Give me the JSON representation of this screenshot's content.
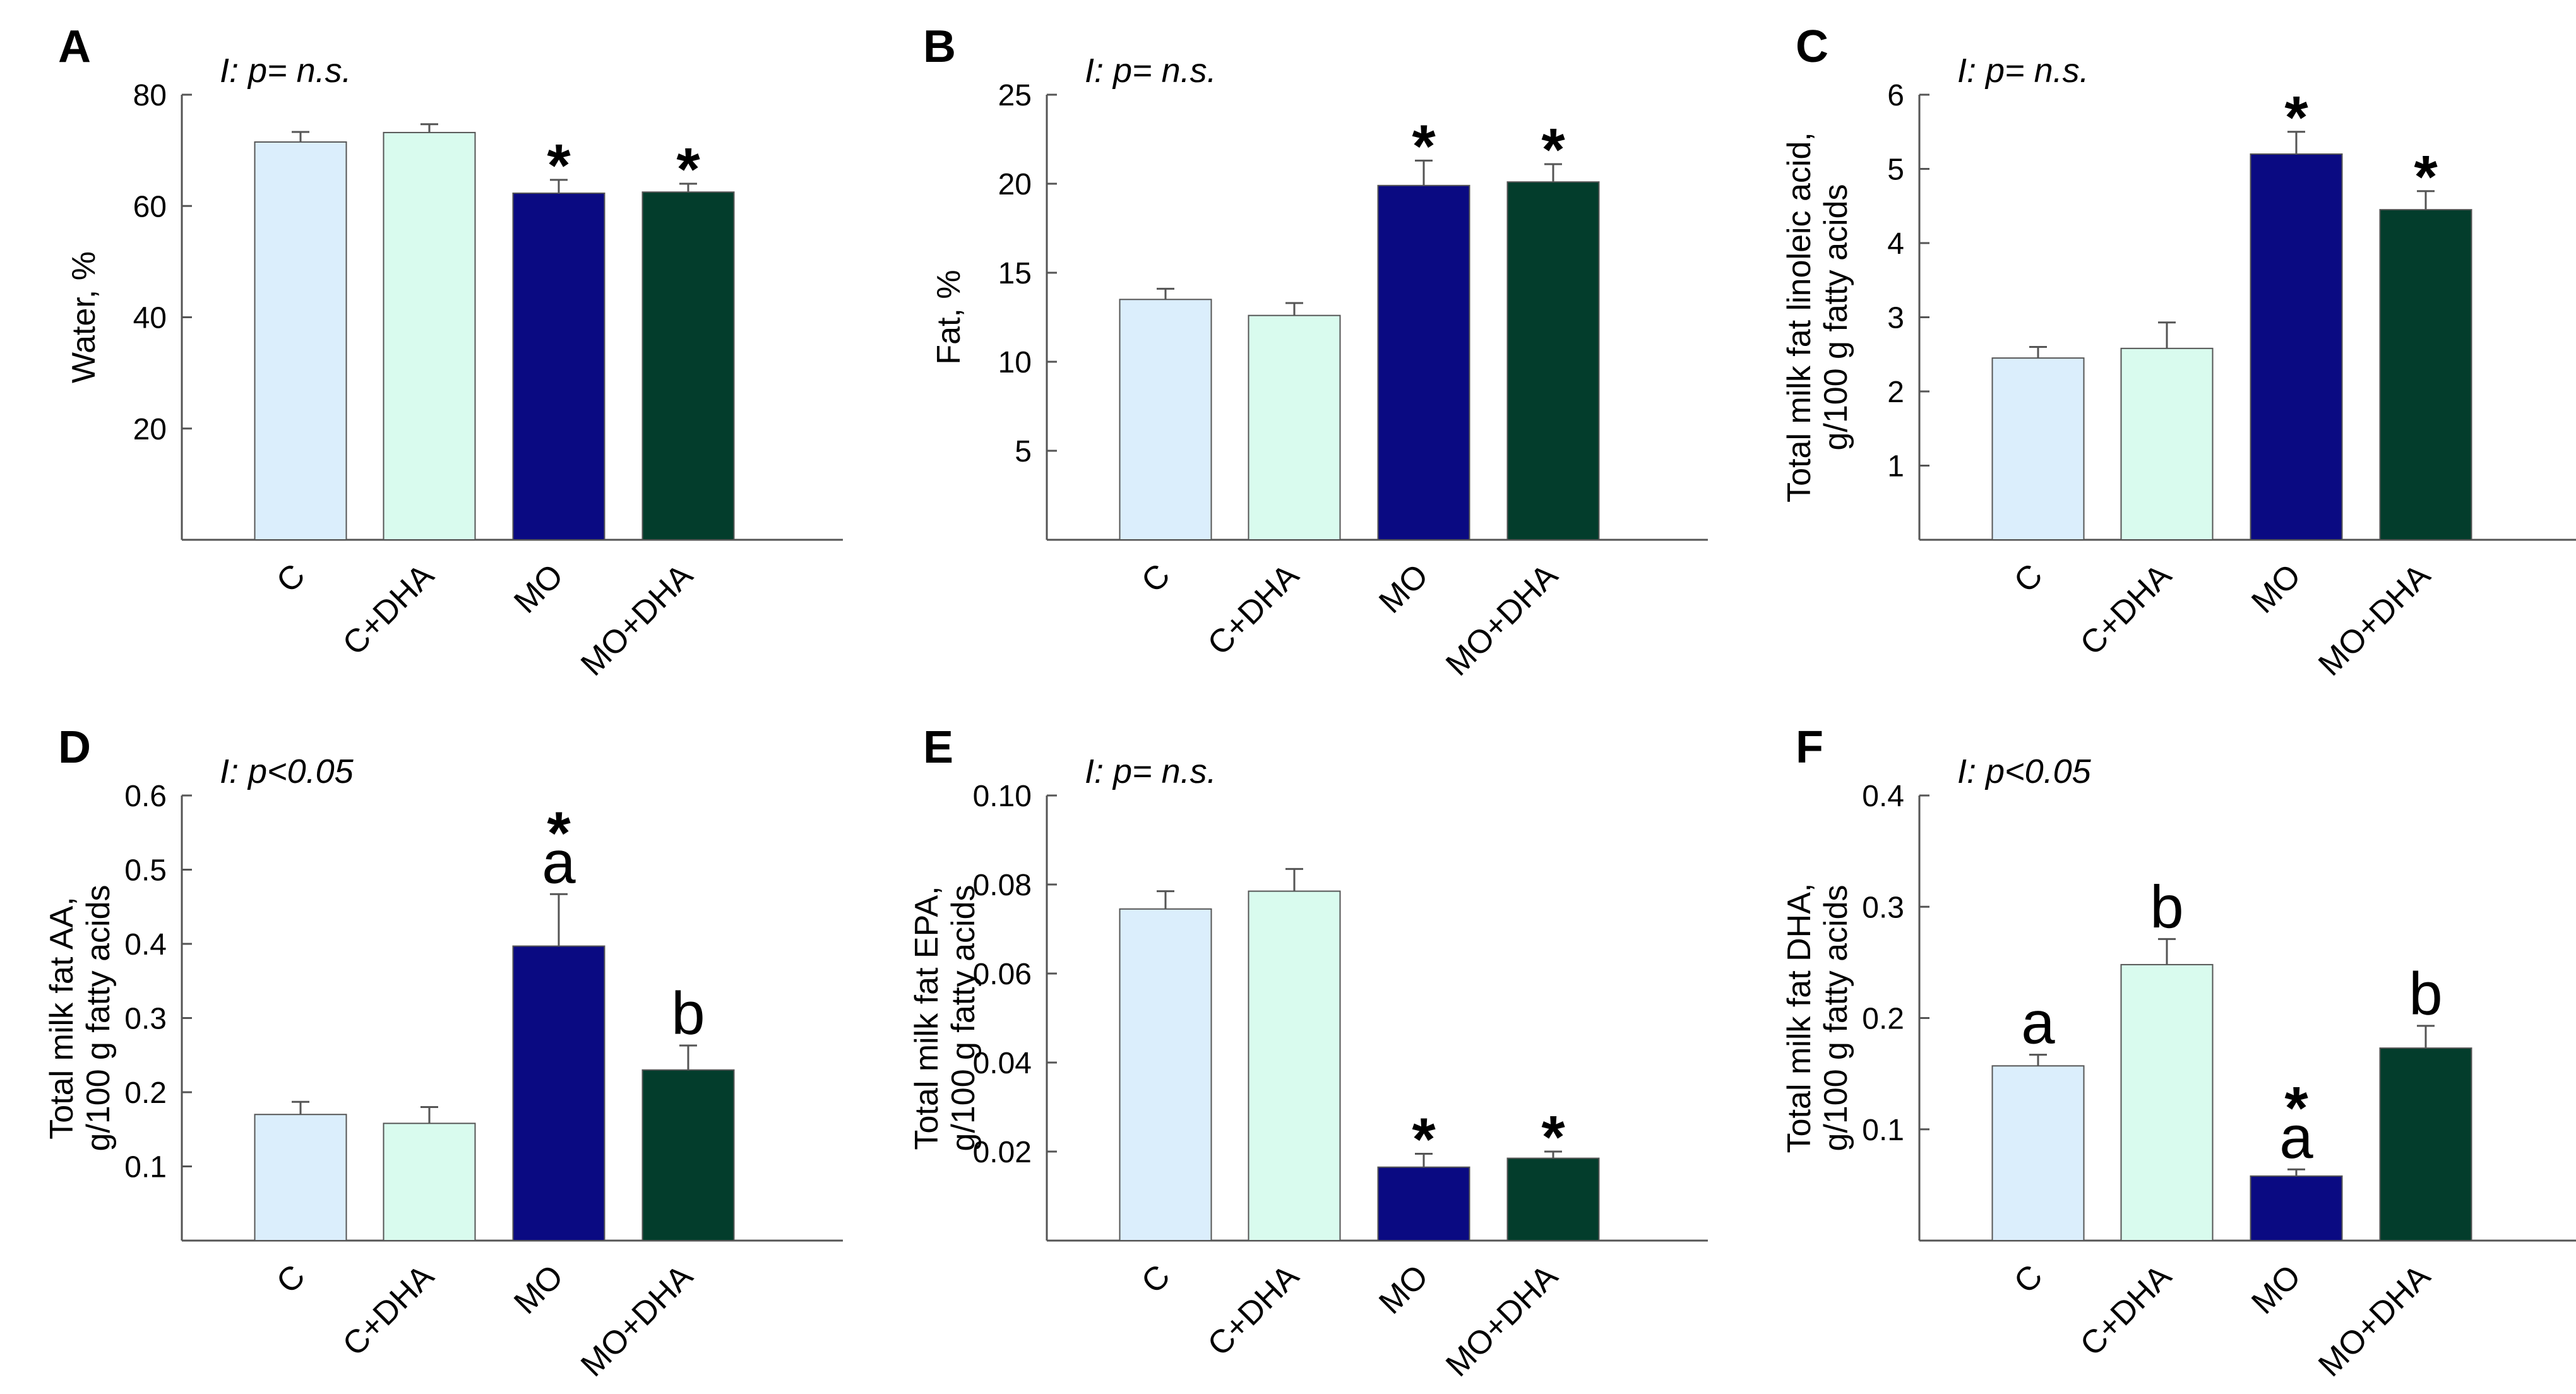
{
  "figure": {
    "colors": {
      "C": "#dbeefc",
      "C+DHA": "#d9fbee",
      "MO": "#0a0a82",
      "MO+DHA": "#033d2c",
      "axis": "#555555",
      "bar_edge": "#555555"
    }
  },
  "chart_data": [
    {
      "panel": "A",
      "type": "bar",
      "interaction_note": "I: p= n.s.",
      "categories": [
        "C",
        "C+DHA",
        "MO",
        "MO+DHA"
      ],
      "values": [
        71.5,
        73.2,
        62.3,
        62.5
      ],
      "errors": [
        1.8,
        1.5,
        2.4,
        1.5
      ],
      "annotations": [
        "",
        "",
        "*",
        "*"
      ],
      "ylabel": [
        "Water, %"
      ],
      "ylim": [
        0,
        80
      ],
      "yticks": [
        20,
        40,
        60,
        80
      ],
      "yticklabels": [
        "20",
        "40",
        "60",
        "80"
      ]
    },
    {
      "panel": "B",
      "type": "bar",
      "interaction_note": "I: p= n.s.",
      "categories": [
        "C",
        "C+DHA",
        "MO",
        "MO+DHA"
      ],
      "values": [
        13.5,
        12.6,
        19.9,
        20.1
      ],
      "errors": [
        0.6,
        0.7,
        1.4,
        1.0
      ],
      "annotations": [
        "",
        "",
        "*",
        "*"
      ],
      "ylabel": [
        "Fat, %"
      ],
      "ylim": [
        0,
        25
      ],
      "yticks": [
        5,
        10,
        15,
        20,
        25
      ],
      "yticklabels": [
        "5",
        "10",
        "15",
        "20",
        "25"
      ]
    },
    {
      "panel": "C",
      "type": "bar",
      "interaction_note": "I: p= n.s.",
      "categories": [
        "C",
        "C+DHA",
        "MO",
        "MO+DHA"
      ],
      "values": [
        2.45,
        2.58,
        5.2,
        4.45
      ],
      "errors": [
        0.15,
        0.35,
        0.3,
        0.25
      ],
      "annotations": [
        "",
        "",
        "*",
        "*"
      ],
      "ylabel": [
        "Total milk fat linoleic acid,",
        "g/100 g fatty acids"
      ],
      "ylim": [
        0,
        6
      ],
      "yticks": [
        1,
        2,
        3,
        4,
        5,
        6
      ],
      "yticklabels": [
        "1",
        "2",
        "3",
        "4",
        "5",
        "6"
      ]
    },
    {
      "panel": "D",
      "type": "bar",
      "interaction_note": "I: p<0.05",
      "categories": [
        "C",
        "C+DHA",
        "MO",
        "MO+DHA"
      ],
      "values": [
        0.17,
        0.158,
        0.397,
        0.23
      ],
      "errors": [
        0.017,
        0.022,
        0.07,
        0.033
      ],
      "annotations": [
        "",
        "",
        "*\na",
        "b"
      ],
      "ylabel": [
        "Total milk fat AA,",
        "g/100 g fatty acids"
      ],
      "ylim": [
        0,
        0.6
      ],
      "yticks": [
        0.1,
        0.2,
        0.3,
        0.4,
        0.5,
        0.6
      ],
      "yticklabels": [
        "0.1",
        "0.2",
        "0.3",
        "0.4",
        "0.5",
        "0.6"
      ]
    },
    {
      "panel": "E",
      "type": "bar",
      "interaction_note": "I: p= n.s.",
      "categories": [
        "C",
        "C+DHA",
        "MO",
        "MO+DHA"
      ],
      "values": [
        0.0745,
        0.0785,
        0.0165,
        0.0185
      ],
      "errors": [
        0.004,
        0.005,
        0.003,
        0.0015
      ],
      "annotations": [
        "",
        "",
        "*",
        "*"
      ],
      "ylabel": [
        "Total milk fat EPA,",
        "g/100 g fatty acids"
      ],
      "ylim": [
        0,
        0.1
      ],
      "yticks": [
        0.02,
        0.04,
        0.06,
        0.08,
        0.1
      ],
      "yticklabels": [
        "0.02",
        "0.04",
        "0.06",
        "0.08",
        "0.10"
      ]
    },
    {
      "panel": "F",
      "type": "bar",
      "interaction_note": "I: p<0.05",
      "categories": [
        "C",
        "C+DHA",
        "MO",
        "MO+DHA"
      ],
      "values": [
        0.157,
        0.248,
        0.058,
        0.173
      ],
      "errors": [
        0.01,
        0.023,
        0.006,
        0.02
      ],
      "annotations": [
        "a",
        "b",
        "*\na",
        "b"
      ],
      "ylabel": [
        "Total milk fat DHA,",
        "g/100 g fatty acids"
      ],
      "ylim": [
        0,
        0.4
      ],
      "yticks": [
        0.1,
        0.2,
        0.3,
        0.4
      ],
      "yticklabels": [
        "0.1",
        "0.2",
        "0.3",
        "0.4"
      ]
    }
  ]
}
